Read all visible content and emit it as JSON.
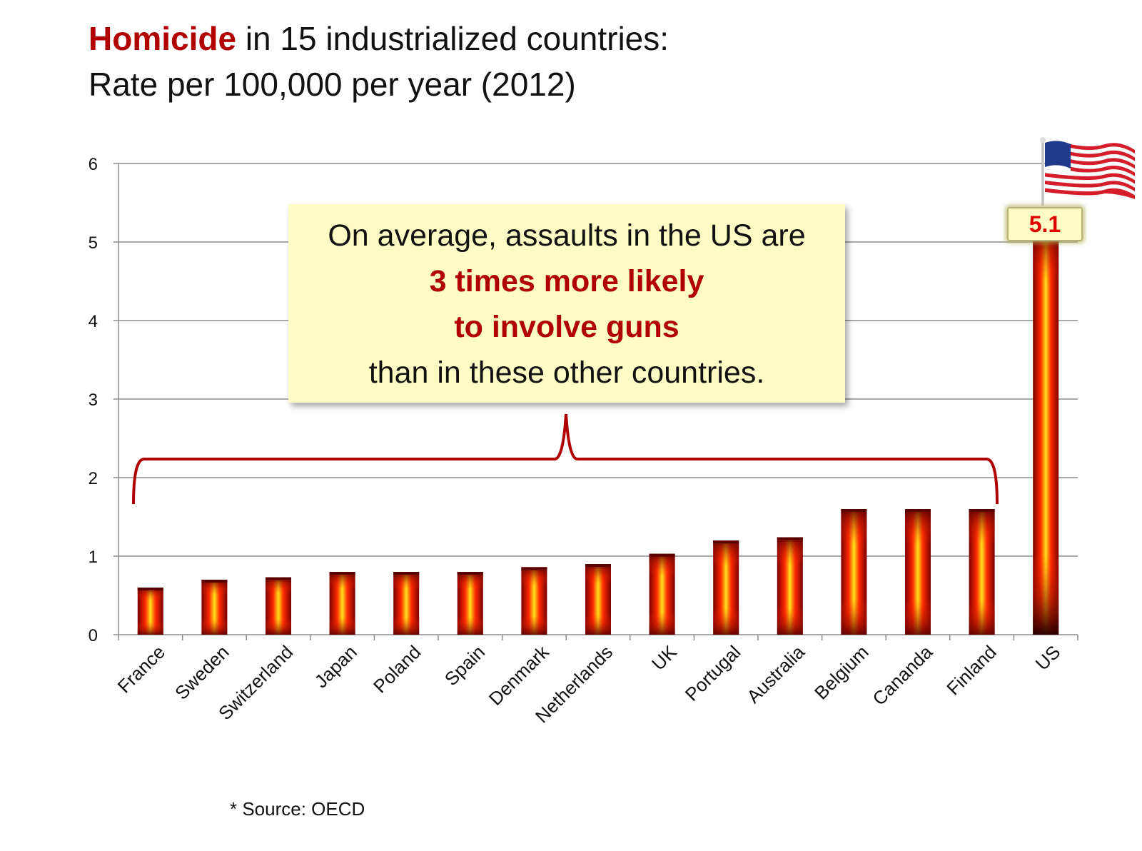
{
  "title": {
    "highlight": "Homicide",
    "rest": " in 15 industrialized countries:",
    "line2": "Rate per 100,000 per year (2012)"
  },
  "callout": {
    "line1": "On average, assaults in the US are",
    "line2": "3 times more likely",
    "line3": "to involve guns",
    "line4": "than in these other countries."
  },
  "value_label": "5.1",
  "source": "* Source: OECD",
  "colors": {
    "accent": "#b00000",
    "callout_bg": "#fdfcc4",
    "bar_outer": "#7a0000",
    "bar_mid": "#ff2a00",
    "bar_core": "#ffe21a",
    "us_bottom": "#3a0000"
  },
  "icons": {
    "flag": "us-flag-icon"
  },
  "chart_data": {
    "type": "bar",
    "categories": [
      "France",
      "Sweden",
      "Switzerland",
      "Japan",
      "Poland",
      "Spain",
      "Denmark",
      "Netherlands",
      "UK",
      "Portugal",
      "Australia",
      "Belgium",
      "Canada",
      "Finland",
      "US"
    ],
    "category_labels": [
      "France",
      "Sweden",
      "Switzerland",
      "Japan",
      "Poland",
      "Spain",
      "Denmark",
      "Netherlands",
      "UK",
      "Portugal",
      "Australia",
      "Belgium",
      "Cananda",
      "Finland",
      "US"
    ],
    "values": [
      0.6,
      0.7,
      0.73,
      0.8,
      0.8,
      0.8,
      0.86,
      0.9,
      1.03,
      1.2,
      1.24,
      1.6,
      1.6,
      1.6,
      5.1
    ],
    "ylim": [
      0,
      6
    ],
    "yticks": [
      0,
      1,
      2,
      3,
      4,
      5,
      6
    ],
    "grid": true,
    "legend": "none",
    "highlight_category": "US"
  }
}
